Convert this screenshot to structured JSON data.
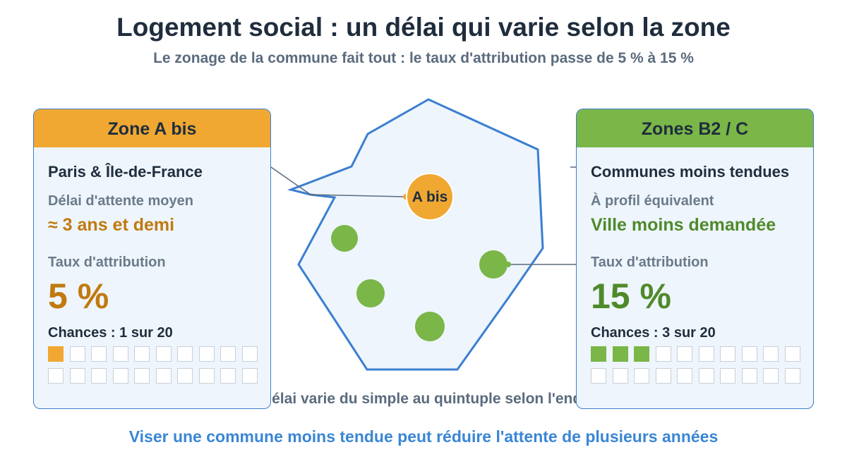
{
  "header": {
    "title": "Logement social : un délai qui varie selon la zone",
    "subtitle": "Le zonage de la commune fait tout : le taux d'attribution passe de 5 % à 15 %"
  },
  "map": {
    "marker_label": "A bis",
    "caption": "Le délai varie du simple au quintuple selon l'endroit"
  },
  "cards": {
    "left": {
      "title": "Zone A bis",
      "region": "Paris & Île-de-France",
      "label1": "Délai d'attente moyen",
      "value1": "≈ 3 ans et demi",
      "label2": "Taux d'attribution",
      "rate": "5 %",
      "chances": "Chances : 1 sur 20",
      "filled": 1,
      "total": 20
    },
    "right": {
      "title": "Zones B2 / C",
      "region": "Communes moins tendues",
      "label1": "À profil équivalent",
      "value1": "Ville moins demandée",
      "label2": "Taux d'attribution",
      "rate": "15 %",
      "chances": "Chances : 3 sur 20",
      "filled": 3,
      "total": 20
    }
  },
  "footer": {
    "text": "Viser une commune moins tendue peut réduire l'attente de plusieurs années"
  },
  "colors": {
    "orange": "#f0a832",
    "green": "#7ab648",
    "blue": "#3b7fd0",
    "map_fill": "#eef5fc"
  }
}
